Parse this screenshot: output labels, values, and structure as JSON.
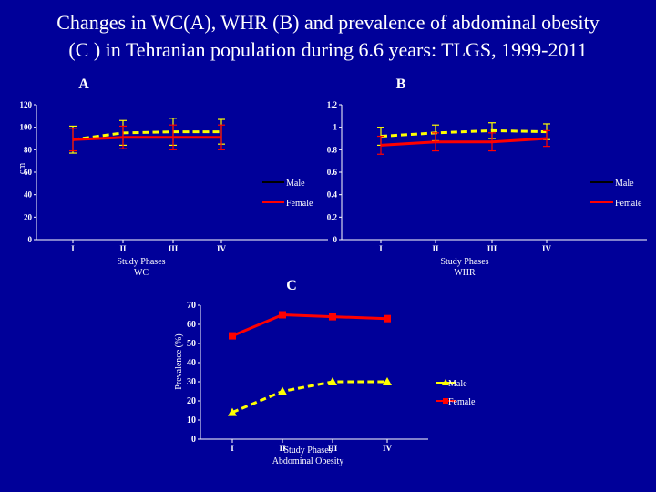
{
  "slide": {
    "title_line1": "Changes in  WC(A), WHR (B) and prevalence of abdominal obesity",
    "title_line2": "(C ) in Tehranian population during 6.6 years: TLGS, 1999-2011"
  },
  "colors": {
    "background": "#000099",
    "male": "#FFFF00",
    "female": "#FF0000",
    "axis": "#FFFFFF",
    "male_line": "#000000"
  },
  "chart_data": [
    {
      "id": "A",
      "panel_label": "A",
      "type": "line",
      "categories": [
        "I",
        "II",
        "III",
        "IV"
      ],
      "xlabel": "Study Phases\nWC",
      "ylabel": "cm",
      "ylim": [
        0,
        120
      ],
      "yticks": [
        "0",
        "20",
        "40",
        "60",
        "80",
        "100",
        "120"
      ],
      "legend": "right",
      "series": [
        {
          "name": "Male",
          "values": [
            89,
            95,
            96,
            96
          ],
          "err": [
            12,
            11,
            12,
            11
          ]
        },
        {
          "name": "Female",
          "values": [
            89,
            91,
            91,
            91
          ],
          "err": [
            10,
            10,
            11,
            11
          ]
        }
      ]
    },
    {
      "id": "B",
      "panel_label": "B",
      "type": "line",
      "categories": [
        "I",
        "II",
        "III",
        "IV"
      ],
      "xlabel": "Study Phases\nWHR",
      "ylabel": "",
      "ylim": [
        0,
        1.2
      ],
      "yticks": [
        "0",
        "0.2",
        "0.4",
        "0.6",
        "0.8",
        "1",
        "1.2"
      ],
      "legend": "right",
      "series": [
        {
          "name": "Male",
          "values": [
            0.92,
            0.95,
            0.97,
            0.96
          ],
          "err": [
            0.08,
            0.07,
            0.07,
            0.07
          ]
        },
        {
          "name": "Female",
          "values": [
            0.84,
            0.87,
            0.87,
            0.9
          ],
          "err": [
            0.08,
            0.08,
            0.08,
            0.07
          ]
        }
      ]
    },
    {
      "id": "C",
      "panel_label": "C",
      "type": "line",
      "categories": [
        "I",
        "II",
        "III",
        "IV"
      ],
      "xlabel": "Study  Phases\nAbdominal Obesity",
      "ylabel": "Prevalence (%)",
      "ylim": [
        0,
        70
      ],
      "yticks": [
        "0",
        "10",
        "20",
        "30",
        "40",
        "50",
        "60",
        "70"
      ],
      "legend": "right",
      "series": [
        {
          "name": "Male",
          "values": [
            14,
            25,
            30,
            30
          ],
          "marker": "triangle"
        },
        {
          "name": "Female",
          "values": [
            54,
            65,
            64,
            63
          ],
          "marker": "square"
        }
      ]
    }
  ]
}
